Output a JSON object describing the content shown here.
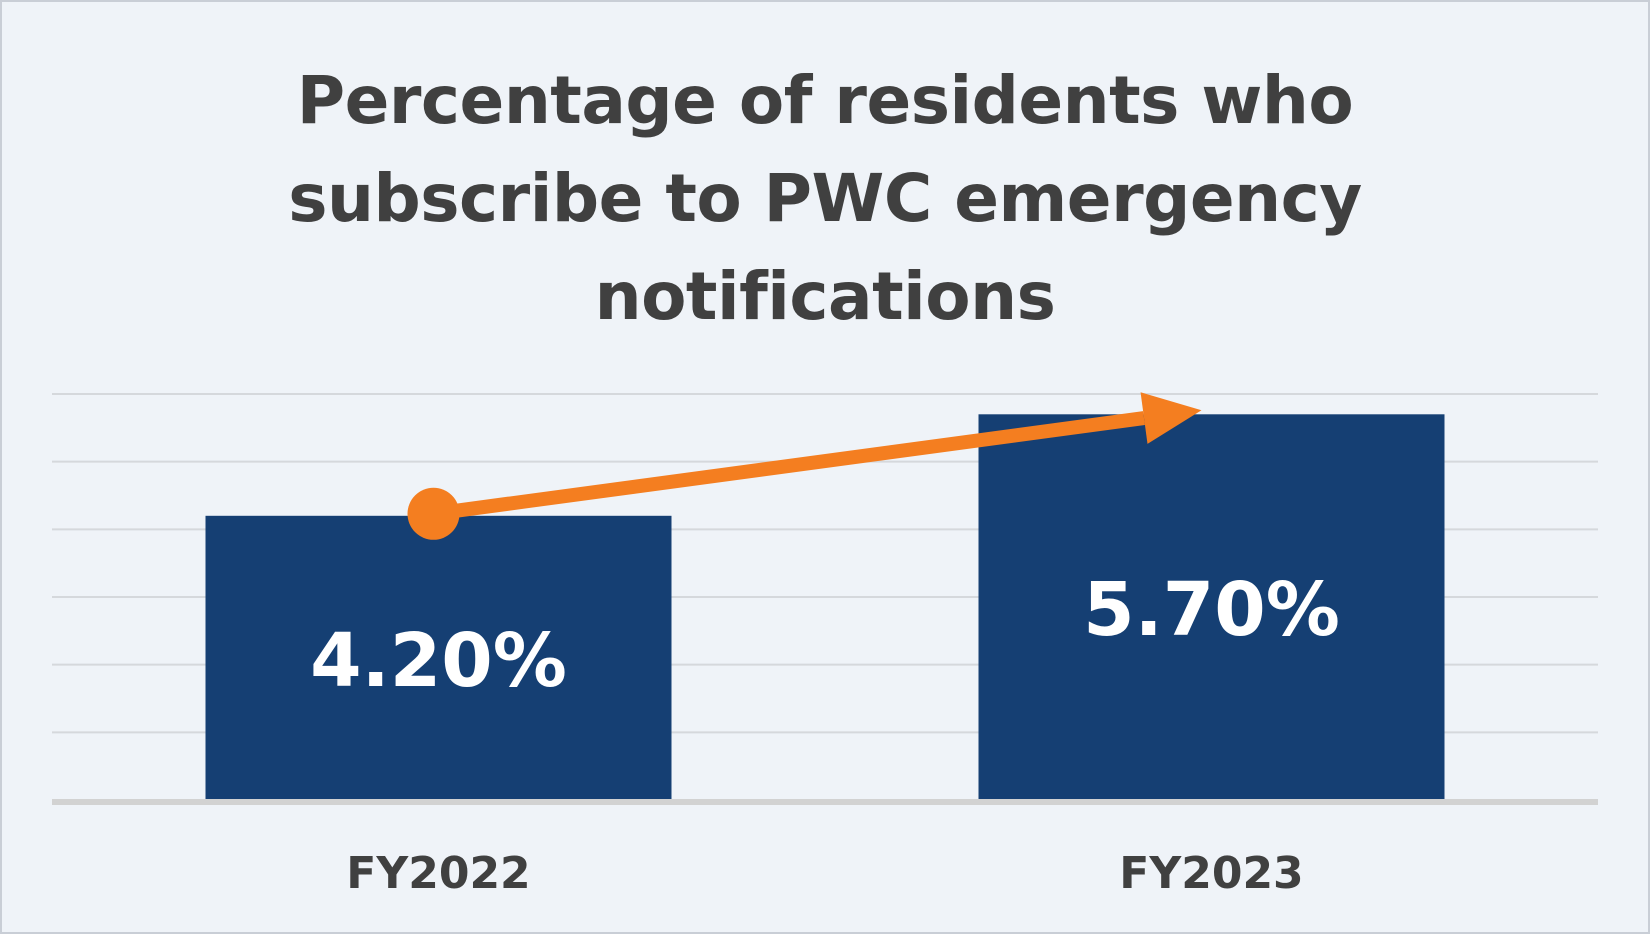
{
  "chart_data": {
    "type": "bar",
    "title_lines": [
      "Percentage of residents who",
      "subscribe to PWC emergency",
      "notifications"
    ],
    "categories": [
      "FY2022",
      "FY2023"
    ],
    "values": [
      4.2,
      5.7
    ],
    "data_labels": [
      "4.20%",
      "5.70%"
    ],
    "ylim": [
      0,
      6
    ],
    "grid": true,
    "bar_color": "#153f73",
    "trend_arrow_color": "#f47e20",
    "gridline_color": "#d5d8dc",
    "background_color": "#eff3f8",
    "text_color": "#404040"
  }
}
